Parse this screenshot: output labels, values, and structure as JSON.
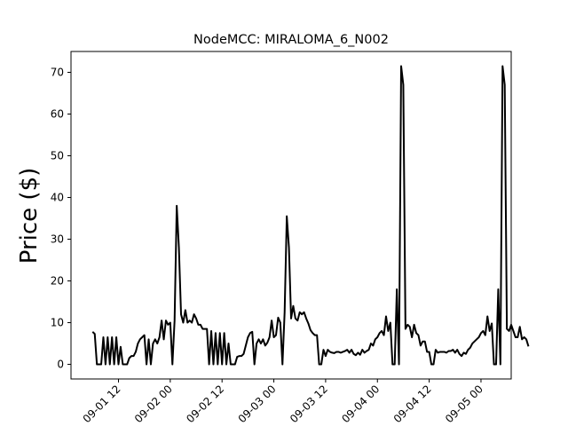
{
  "chart_data": {
    "type": "line",
    "title": "NodeMCC: MIRALOMA_6_N002",
    "xlabel": "",
    "ylabel": "Price ($)",
    "xlim": [
      "2022-09-01 01:00",
      "2022-09-05 07:00"
    ],
    "ylim": [
      -3.5,
      75
    ],
    "y_ticks": [
      0,
      10,
      20,
      30,
      40,
      50,
      60,
      70
    ],
    "x_ticks": [
      "09-01 12",
      "09-02 00",
      "09-02 12",
      "09-03 00",
      "09-03 12",
      "09-04 00",
      "09-04 12",
      "09-05 00"
    ],
    "grid": false,
    "series": [
      {
        "color": "#000000",
        "x_start": "2022-09-01 06:00",
        "x_step_hours": 0.5,
        "values": [
          7.8,
          7.3,
          0,
          0,
          0,
          6.5,
          0,
          6.5,
          0,
          6.5,
          0,
          6.5,
          0,
          4.2,
          0,
          0,
          0,
          1.5,
          2,
          2,
          3,
          5,
          6,
          6.5,
          7,
          0,
          6,
          0,
          5,
          6,
          5,
          6.5,
          10.5,
          6,
          10.5,
          9.5,
          10,
          0,
          10.5,
          38,
          28,
          12,
          10,
          13,
          10,
          10.5,
          10,
          12,
          11,
          9.5,
          9.5,
          8.5,
          8.5,
          8.5,
          0,
          8,
          0,
          7.5,
          0,
          7.5,
          0,
          7.5,
          0,
          5,
          0,
          0,
          0,
          1.8,
          2,
          2,
          2.5,
          4.5,
          6.5,
          7.5,
          7.8,
          0,
          5,
          6,
          5,
          6,
          4.5,
          5.2,
          6.5,
          10.5,
          6.5,
          7,
          11.2,
          10,
          0,
          12.5,
          35.5,
          28,
          11,
          14,
          11,
          10.5,
          12.5,
          12,
          12.5,
          11,
          9.8,
          8.2,
          7.5,
          7,
          7,
          0,
          0,
          3.5,
          2,
          3.5,
          3,
          2.8,
          2.7,
          3,
          3,
          2.8,
          3,
          3.2,
          3.5,
          2.8,
          3.5,
          2.5,
          2.2,
          2.8,
          2.3,
          3.5,
          2.8,
          3.2,
          3.5,
          5,
          4.5,
          6,
          6.5,
          7.5,
          8,
          7,
          11.5,
          8,
          10,
          0,
          0,
          18,
          0,
          71.5,
          67,
          8.5,
          9.5,
          9,
          6.5,
          9.5,
          7.5,
          7,
          4.5,
          5.5,
          5.5,
          3,
          3,
          0,
          0,
          3.5,
          2.8,
          3,
          3,
          3,
          2.8,
          3.2,
          3.2,
          3.5,
          2.8,
          3.5,
          2.5,
          2,
          2.8,
          2.5,
          3.5,
          4,
          5,
          5.5,
          6,
          6.5,
          7.5,
          8,
          7,
          11.5,
          8,
          9.8,
          0,
          0,
          18,
          0,
          71.5,
          67,
          8.5,
          8,
          9.5,
          8,
          6.5,
          6.5,
          9,
          6,
          6.5,
          6,
          4.3
        ]
      }
    ]
  }
}
